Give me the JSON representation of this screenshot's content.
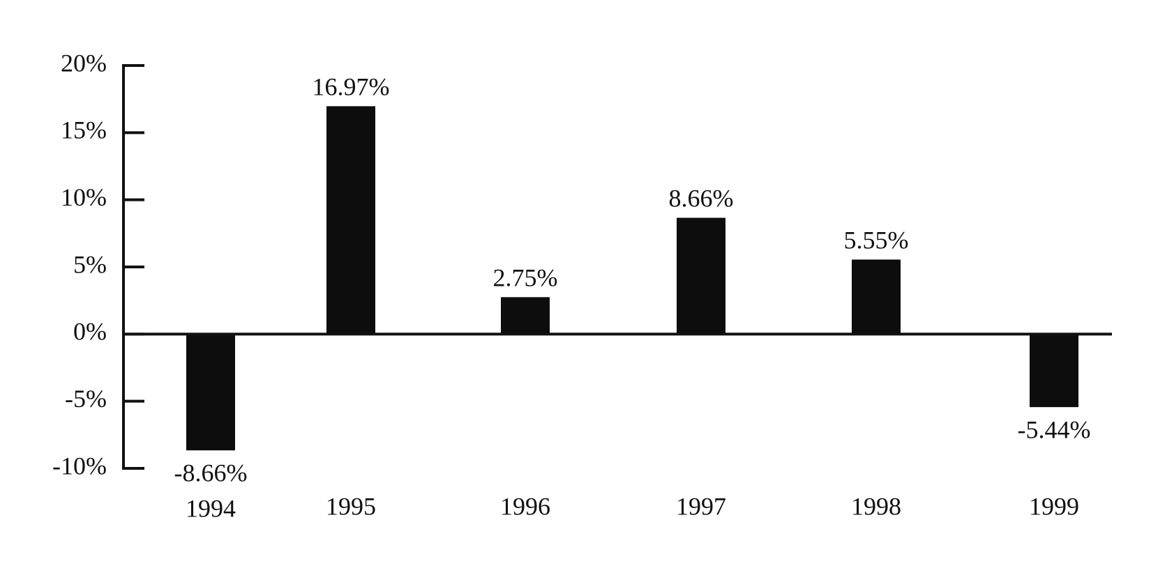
{
  "chart_data": {
    "type": "bar",
    "categories": [
      "1994",
      "1995",
      "1996",
      "1997",
      "1998",
      "1999"
    ],
    "values": [
      -8.66,
      16.97,
      2.75,
      8.66,
      5.55,
      -5.44
    ],
    "value_labels": [
      "-8.66%",
      "16.97%",
      "2.75%",
      "8.66%",
      "5.55%",
      "-5.44%"
    ],
    "color": "#0d0d0d",
    "ylim": [
      -10,
      20
    ],
    "yticks": [
      {
        "value": -10,
        "label": "-10%"
      },
      {
        "value": -5,
        "label": "-5%"
      },
      {
        "value": 0,
        "label": "0%"
      },
      {
        "value": 5,
        "label": "5%"
      },
      {
        "value": 10,
        "label": "10%"
      },
      {
        "value": 15,
        "label": "15%"
      },
      {
        "value": 20,
        "label": "20%"
      }
    ],
    "grid": false
  }
}
